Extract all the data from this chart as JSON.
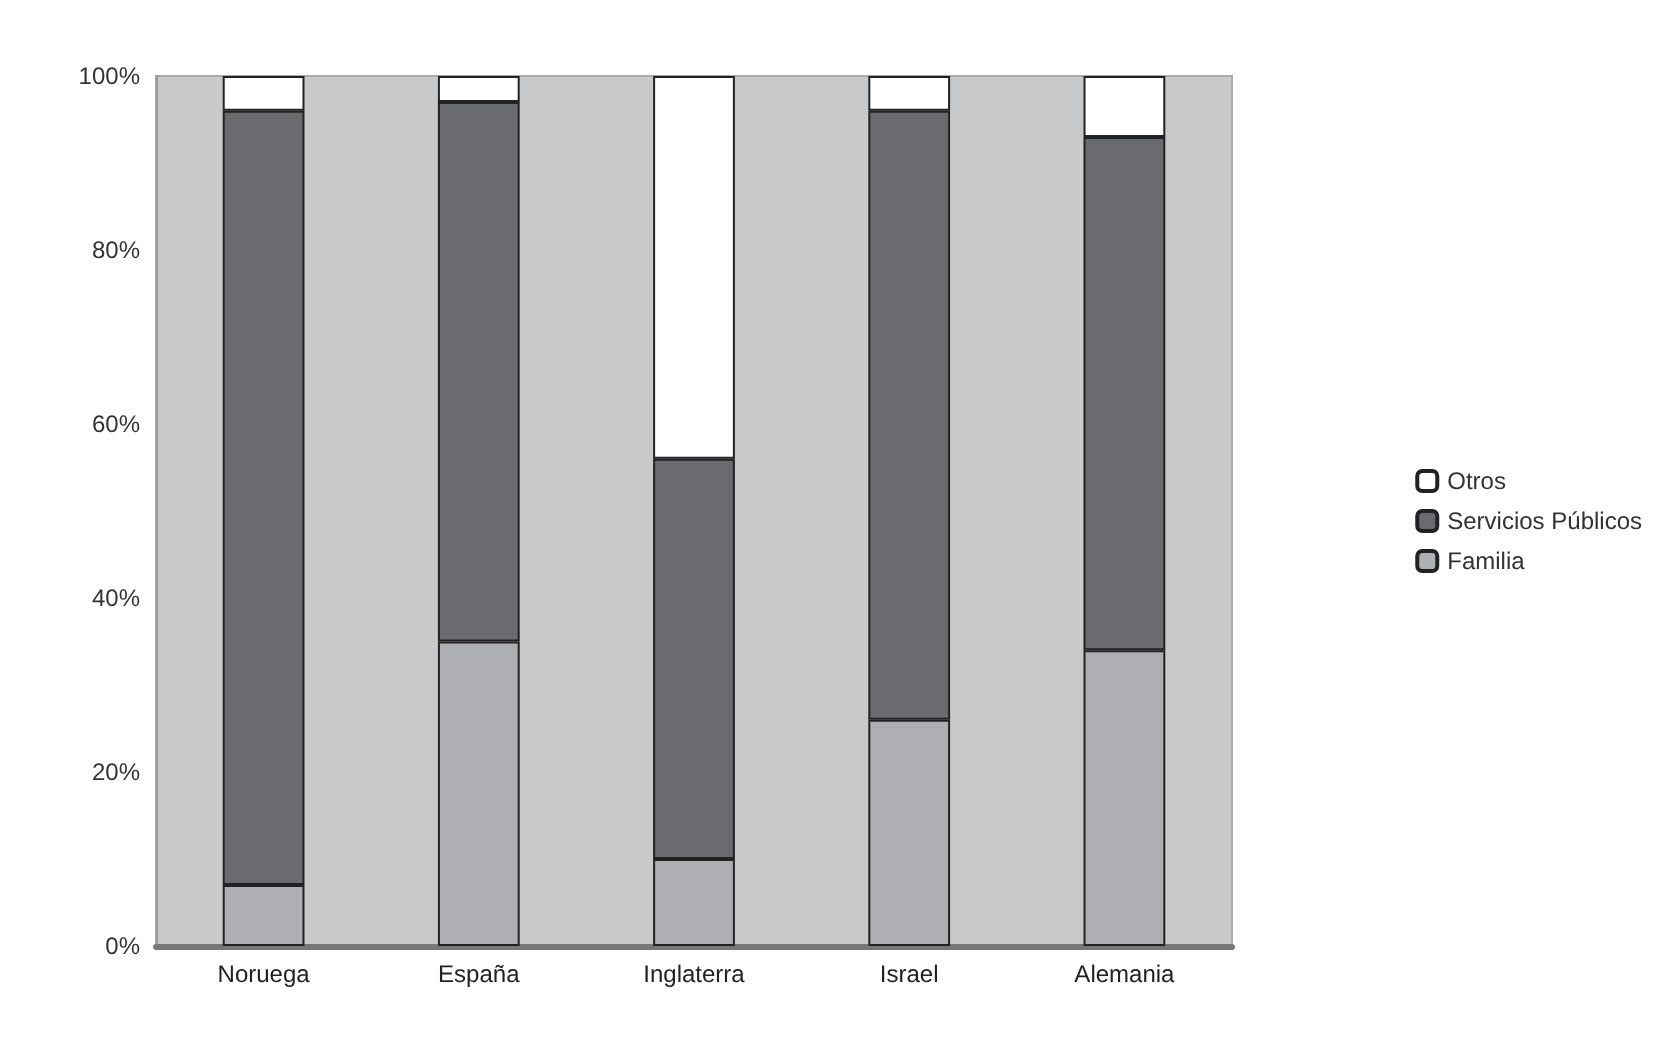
{
  "chart_data": {
    "type": "bar",
    "stacked": true,
    "categories": [
      "Noruega",
      "España",
      "Inglaterra",
      "Israel",
      "Alemania"
    ],
    "series": [
      {
        "name": "Familia",
        "color": "#aeafb3",
        "values": [
          7,
          35,
          10,
          26,
          34
        ]
      },
      {
        "name": "Servicios Públicos",
        "color": "#6a6b6f",
        "values": [
          89,
          62,
          46,
          70,
          59
        ]
      },
      {
        "name": "Otros",
        "color": "#ffffff",
        "values": [
          4,
          3,
          44,
          4,
          7
        ]
      }
    ],
    "ylim": [
      0,
      100
    ],
    "yticks": [
      {
        "value": 0,
        "label": "0%"
      },
      {
        "value": 20,
        "label": "20%"
      },
      {
        "value": 40,
        "label": "40%"
      },
      {
        "value": 60,
        "label": "60%"
      },
      {
        "value": 80,
        "label": "80%"
      },
      {
        "value": 100,
        "label": "100%"
      }
    ],
    "legend": "right",
    "grid": false
  }
}
